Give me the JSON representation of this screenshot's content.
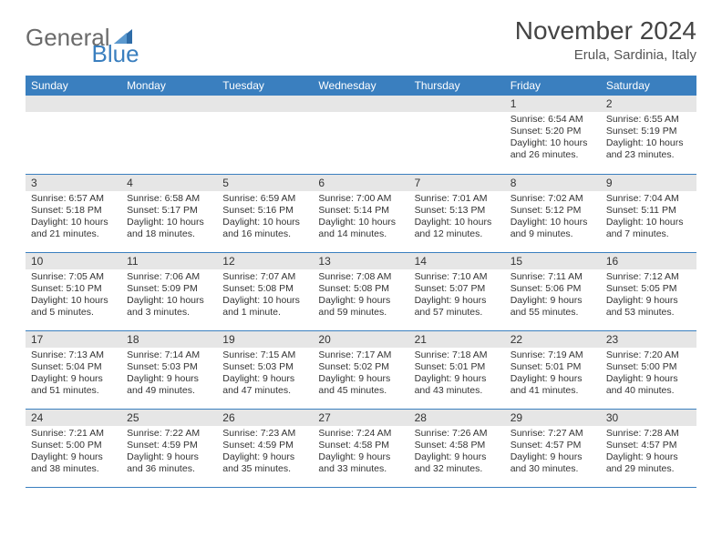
{
  "logo": {
    "text1": "General",
    "text2": "Blue"
  },
  "title": "November 2024",
  "subtitle": "Erula, Sardinia, Italy",
  "colors": {
    "header_bg": "#3a7fbf",
    "header_fg": "#ffffff",
    "daynum_bg": "#e6e6e6",
    "rule": "#3a7fbf",
    "text": "#333333",
    "logo_gray": "#6b6b6b",
    "logo_blue": "#3a7fbf",
    "page_bg": "#ffffff"
  },
  "typography": {
    "title_pt": 28,
    "subtitle_pt": 15,
    "dayhead_pt": 12,
    "daynum_pt": 12,
    "body_pt": 10.5,
    "logo_pt": 26
  },
  "day_headers": [
    "Sunday",
    "Monday",
    "Tuesday",
    "Wednesday",
    "Thursday",
    "Friday",
    "Saturday"
  ],
  "weeks": [
    [
      {
        "n": "",
        "sunrise": "",
        "sunset": "",
        "daylight": ""
      },
      {
        "n": "",
        "sunrise": "",
        "sunset": "",
        "daylight": ""
      },
      {
        "n": "",
        "sunrise": "",
        "sunset": "",
        "daylight": ""
      },
      {
        "n": "",
        "sunrise": "",
        "sunset": "",
        "daylight": ""
      },
      {
        "n": "",
        "sunrise": "",
        "sunset": "",
        "daylight": ""
      },
      {
        "n": "1",
        "sunrise": "Sunrise: 6:54 AM",
        "sunset": "Sunset: 5:20 PM",
        "daylight": "Daylight: 10 hours and 26 minutes."
      },
      {
        "n": "2",
        "sunrise": "Sunrise: 6:55 AM",
        "sunset": "Sunset: 5:19 PM",
        "daylight": "Daylight: 10 hours and 23 minutes."
      }
    ],
    [
      {
        "n": "3",
        "sunrise": "Sunrise: 6:57 AM",
        "sunset": "Sunset: 5:18 PM",
        "daylight": "Daylight: 10 hours and 21 minutes."
      },
      {
        "n": "4",
        "sunrise": "Sunrise: 6:58 AM",
        "sunset": "Sunset: 5:17 PM",
        "daylight": "Daylight: 10 hours and 18 minutes."
      },
      {
        "n": "5",
        "sunrise": "Sunrise: 6:59 AM",
        "sunset": "Sunset: 5:16 PM",
        "daylight": "Daylight: 10 hours and 16 minutes."
      },
      {
        "n": "6",
        "sunrise": "Sunrise: 7:00 AM",
        "sunset": "Sunset: 5:14 PM",
        "daylight": "Daylight: 10 hours and 14 minutes."
      },
      {
        "n": "7",
        "sunrise": "Sunrise: 7:01 AM",
        "sunset": "Sunset: 5:13 PM",
        "daylight": "Daylight: 10 hours and 12 minutes."
      },
      {
        "n": "8",
        "sunrise": "Sunrise: 7:02 AM",
        "sunset": "Sunset: 5:12 PM",
        "daylight": "Daylight: 10 hours and 9 minutes."
      },
      {
        "n": "9",
        "sunrise": "Sunrise: 7:04 AM",
        "sunset": "Sunset: 5:11 PM",
        "daylight": "Daylight: 10 hours and 7 minutes."
      }
    ],
    [
      {
        "n": "10",
        "sunrise": "Sunrise: 7:05 AM",
        "sunset": "Sunset: 5:10 PM",
        "daylight": "Daylight: 10 hours and 5 minutes."
      },
      {
        "n": "11",
        "sunrise": "Sunrise: 7:06 AM",
        "sunset": "Sunset: 5:09 PM",
        "daylight": "Daylight: 10 hours and 3 minutes."
      },
      {
        "n": "12",
        "sunrise": "Sunrise: 7:07 AM",
        "sunset": "Sunset: 5:08 PM",
        "daylight": "Daylight: 10 hours and 1 minute."
      },
      {
        "n": "13",
        "sunrise": "Sunrise: 7:08 AM",
        "sunset": "Sunset: 5:08 PM",
        "daylight": "Daylight: 9 hours and 59 minutes."
      },
      {
        "n": "14",
        "sunrise": "Sunrise: 7:10 AM",
        "sunset": "Sunset: 5:07 PM",
        "daylight": "Daylight: 9 hours and 57 minutes."
      },
      {
        "n": "15",
        "sunrise": "Sunrise: 7:11 AM",
        "sunset": "Sunset: 5:06 PM",
        "daylight": "Daylight: 9 hours and 55 minutes."
      },
      {
        "n": "16",
        "sunrise": "Sunrise: 7:12 AM",
        "sunset": "Sunset: 5:05 PM",
        "daylight": "Daylight: 9 hours and 53 minutes."
      }
    ],
    [
      {
        "n": "17",
        "sunrise": "Sunrise: 7:13 AM",
        "sunset": "Sunset: 5:04 PM",
        "daylight": "Daylight: 9 hours and 51 minutes."
      },
      {
        "n": "18",
        "sunrise": "Sunrise: 7:14 AM",
        "sunset": "Sunset: 5:03 PM",
        "daylight": "Daylight: 9 hours and 49 minutes."
      },
      {
        "n": "19",
        "sunrise": "Sunrise: 7:15 AM",
        "sunset": "Sunset: 5:03 PM",
        "daylight": "Daylight: 9 hours and 47 minutes."
      },
      {
        "n": "20",
        "sunrise": "Sunrise: 7:17 AM",
        "sunset": "Sunset: 5:02 PM",
        "daylight": "Daylight: 9 hours and 45 minutes."
      },
      {
        "n": "21",
        "sunrise": "Sunrise: 7:18 AM",
        "sunset": "Sunset: 5:01 PM",
        "daylight": "Daylight: 9 hours and 43 minutes."
      },
      {
        "n": "22",
        "sunrise": "Sunrise: 7:19 AM",
        "sunset": "Sunset: 5:01 PM",
        "daylight": "Daylight: 9 hours and 41 minutes."
      },
      {
        "n": "23",
        "sunrise": "Sunrise: 7:20 AM",
        "sunset": "Sunset: 5:00 PM",
        "daylight": "Daylight: 9 hours and 40 minutes."
      }
    ],
    [
      {
        "n": "24",
        "sunrise": "Sunrise: 7:21 AM",
        "sunset": "Sunset: 5:00 PM",
        "daylight": "Daylight: 9 hours and 38 minutes."
      },
      {
        "n": "25",
        "sunrise": "Sunrise: 7:22 AM",
        "sunset": "Sunset: 4:59 PM",
        "daylight": "Daylight: 9 hours and 36 minutes."
      },
      {
        "n": "26",
        "sunrise": "Sunrise: 7:23 AM",
        "sunset": "Sunset: 4:59 PM",
        "daylight": "Daylight: 9 hours and 35 minutes."
      },
      {
        "n": "27",
        "sunrise": "Sunrise: 7:24 AM",
        "sunset": "Sunset: 4:58 PM",
        "daylight": "Daylight: 9 hours and 33 minutes."
      },
      {
        "n": "28",
        "sunrise": "Sunrise: 7:26 AM",
        "sunset": "Sunset: 4:58 PM",
        "daylight": "Daylight: 9 hours and 32 minutes."
      },
      {
        "n": "29",
        "sunrise": "Sunrise: 7:27 AM",
        "sunset": "Sunset: 4:57 PM",
        "daylight": "Daylight: 9 hours and 30 minutes."
      },
      {
        "n": "30",
        "sunrise": "Sunrise: 7:28 AM",
        "sunset": "Sunset: 4:57 PM",
        "daylight": "Daylight: 9 hours and 29 minutes."
      }
    ]
  ]
}
